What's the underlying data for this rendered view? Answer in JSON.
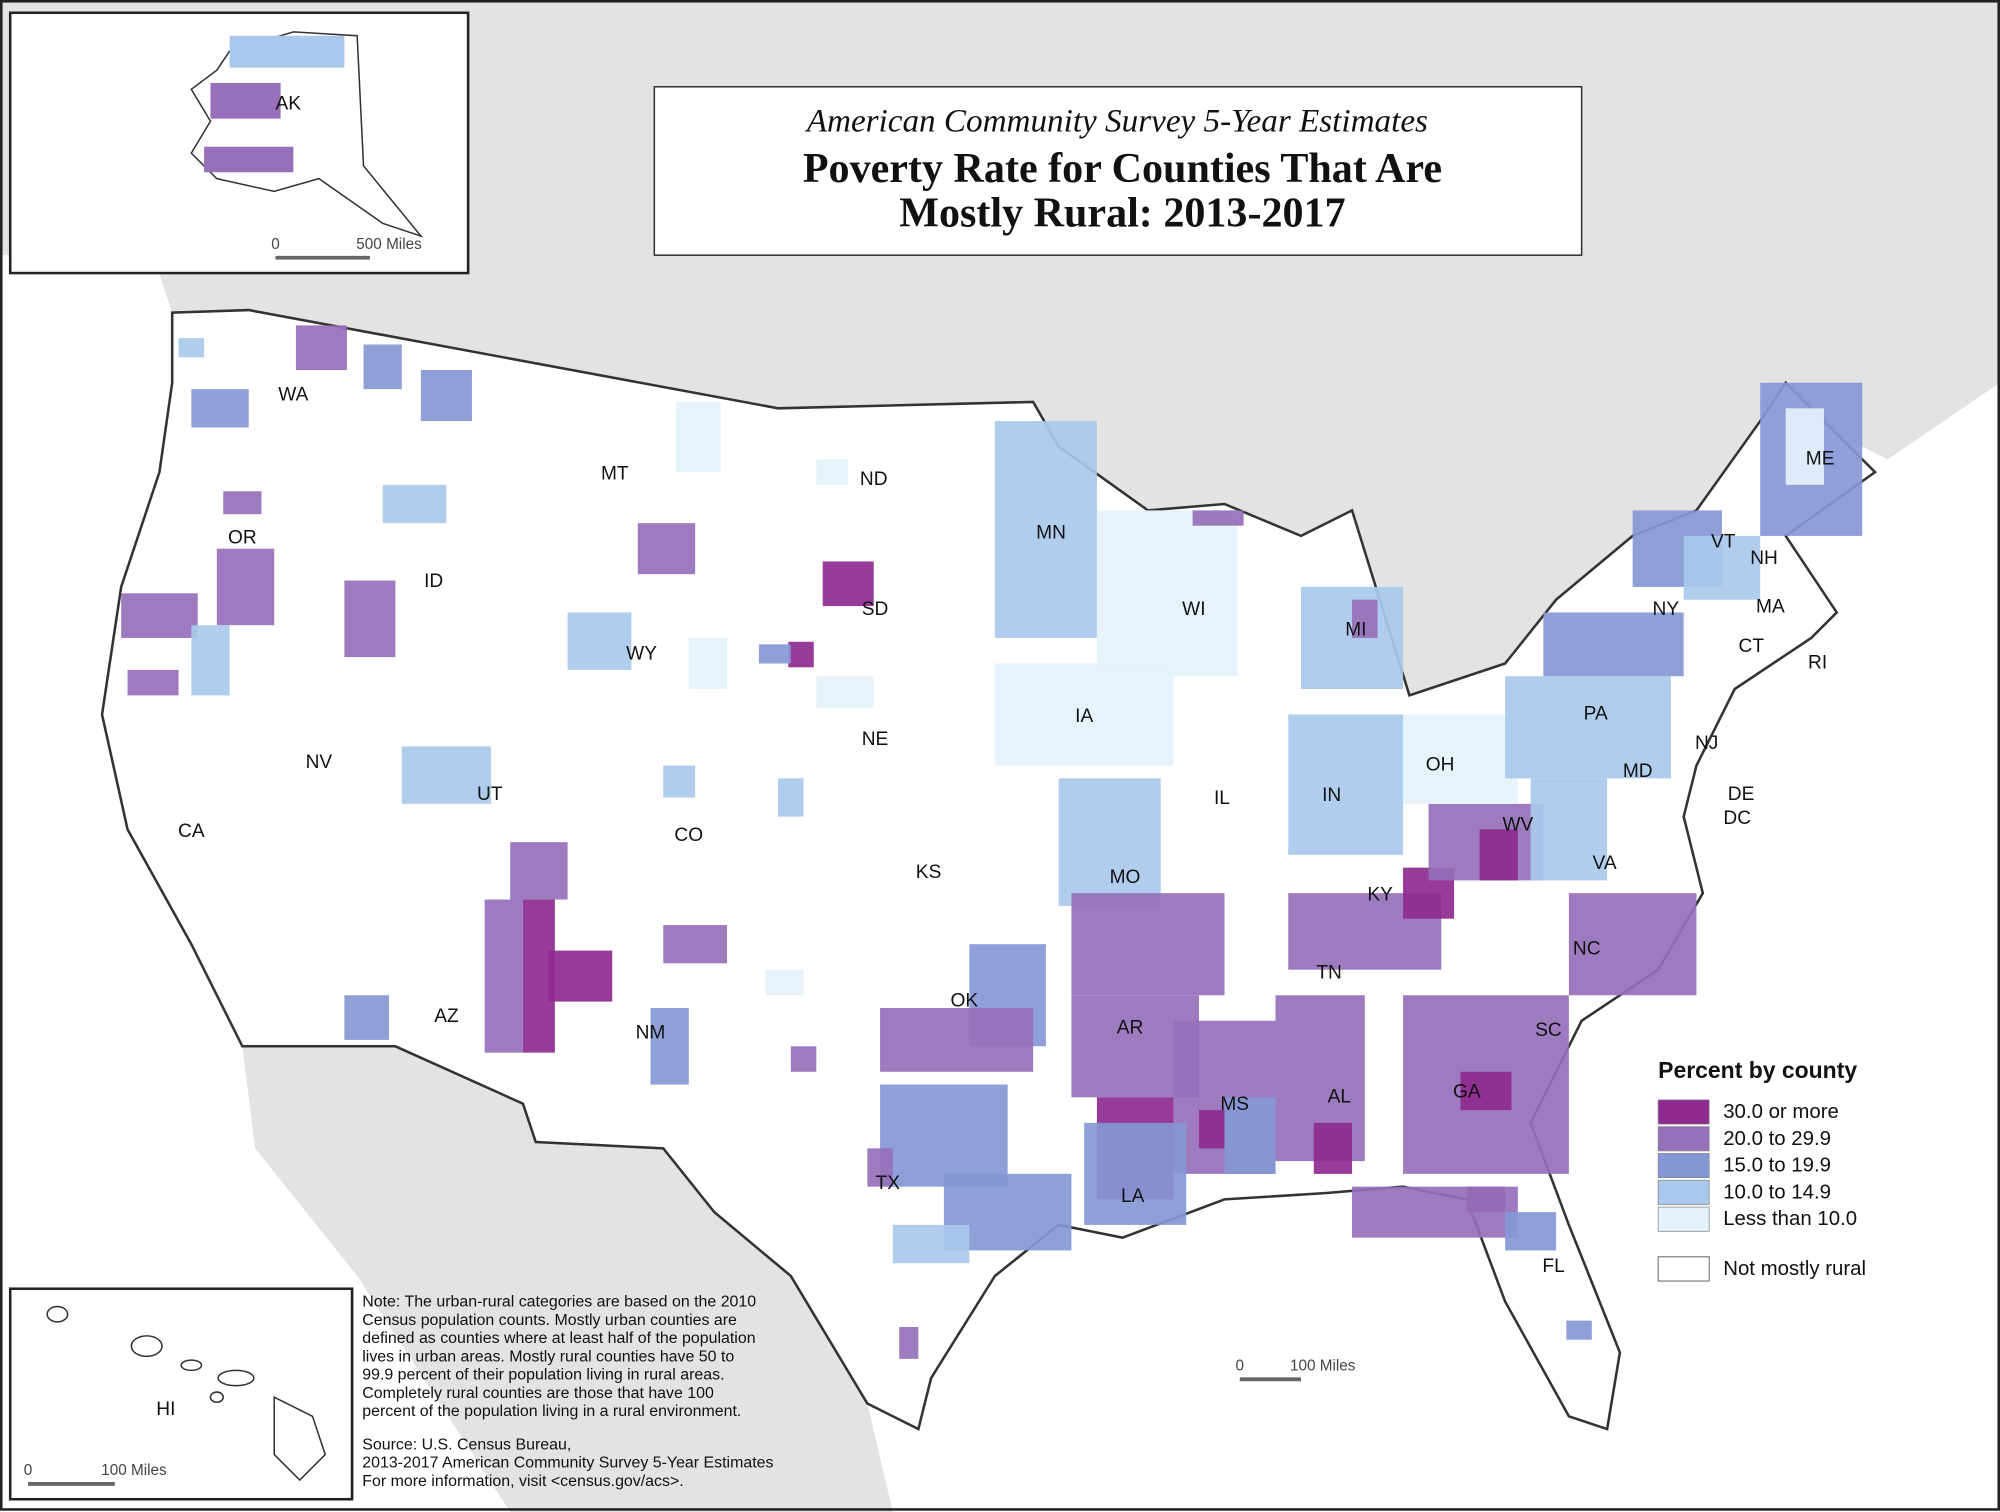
{
  "header": {
    "subtitle": "American Community Survey 5-Year Estimates",
    "title_lines": [
      "Poverty Rate for Counties That Are",
      "Mostly Rural: 2013-2017"
    ]
  },
  "legend": {
    "title": "Percent by county",
    "items": [
      {
        "label": "30.0 or more",
        "color": "#8e2a8f"
      },
      {
        "label": "20.0 to 29.9",
        "color": "#9670b8"
      },
      {
        "label": "15.0 to 19.9",
        "color": "#8597d4"
      },
      {
        "label": "10.0 to 14.9",
        "color": "#a9c9ec"
      },
      {
        "label": "Less than 10.0",
        "color": "#e4f2fb"
      }
    ],
    "not_rural": {
      "label": "Not mostly rural",
      "color": "#ffffff"
    }
  },
  "state_labels": [
    "WA",
    "OR",
    "CA",
    "NV",
    "ID",
    "MT",
    "WY",
    "UT",
    "AZ",
    "CO",
    "NM",
    "ND",
    "SD",
    "NE",
    "KS",
    "OK",
    "TX",
    "MN",
    "IA",
    "MO",
    "AR",
    "LA",
    "WI",
    "IL",
    "MS",
    "MI",
    "IN",
    "KY",
    "TN",
    "AL",
    "OH",
    "GA",
    "FL",
    "SC",
    "NC",
    "VA",
    "WV",
    "PA",
    "NY",
    "VT",
    "NH",
    "ME",
    "MA",
    "CT",
    "RI",
    "NJ",
    "DE",
    "MD",
    "DC"
  ],
  "insets": {
    "alaska": {
      "label": "AK",
      "scale": [
        "0",
        "500 Miles"
      ]
    },
    "hawaii": {
      "label": "HI",
      "scale": [
        "0",
        "100 Miles"
      ]
    }
  },
  "main_scale": [
    "0",
    "100 Miles"
  ],
  "note": [
    "Note: The urban-rural categories are based on the 2010",
    "Census population counts. Mostly urban counties are",
    "defined as counties where at least half of the population",
    "lives in urban areas. Mostly rural counties have 50 to",
    "99.9 percent of their population living in rural areas.",
    "Completely rural counties are those that have 100",
    "percent of the population living in a rural environment."
  ],
  "source": [
    "Source: U.S. Census Bureau,",
    "2013-2017 American Community Survey 5-Year Estimates",
    "For more information, visit <census.gov/acs>."
  ]
}
